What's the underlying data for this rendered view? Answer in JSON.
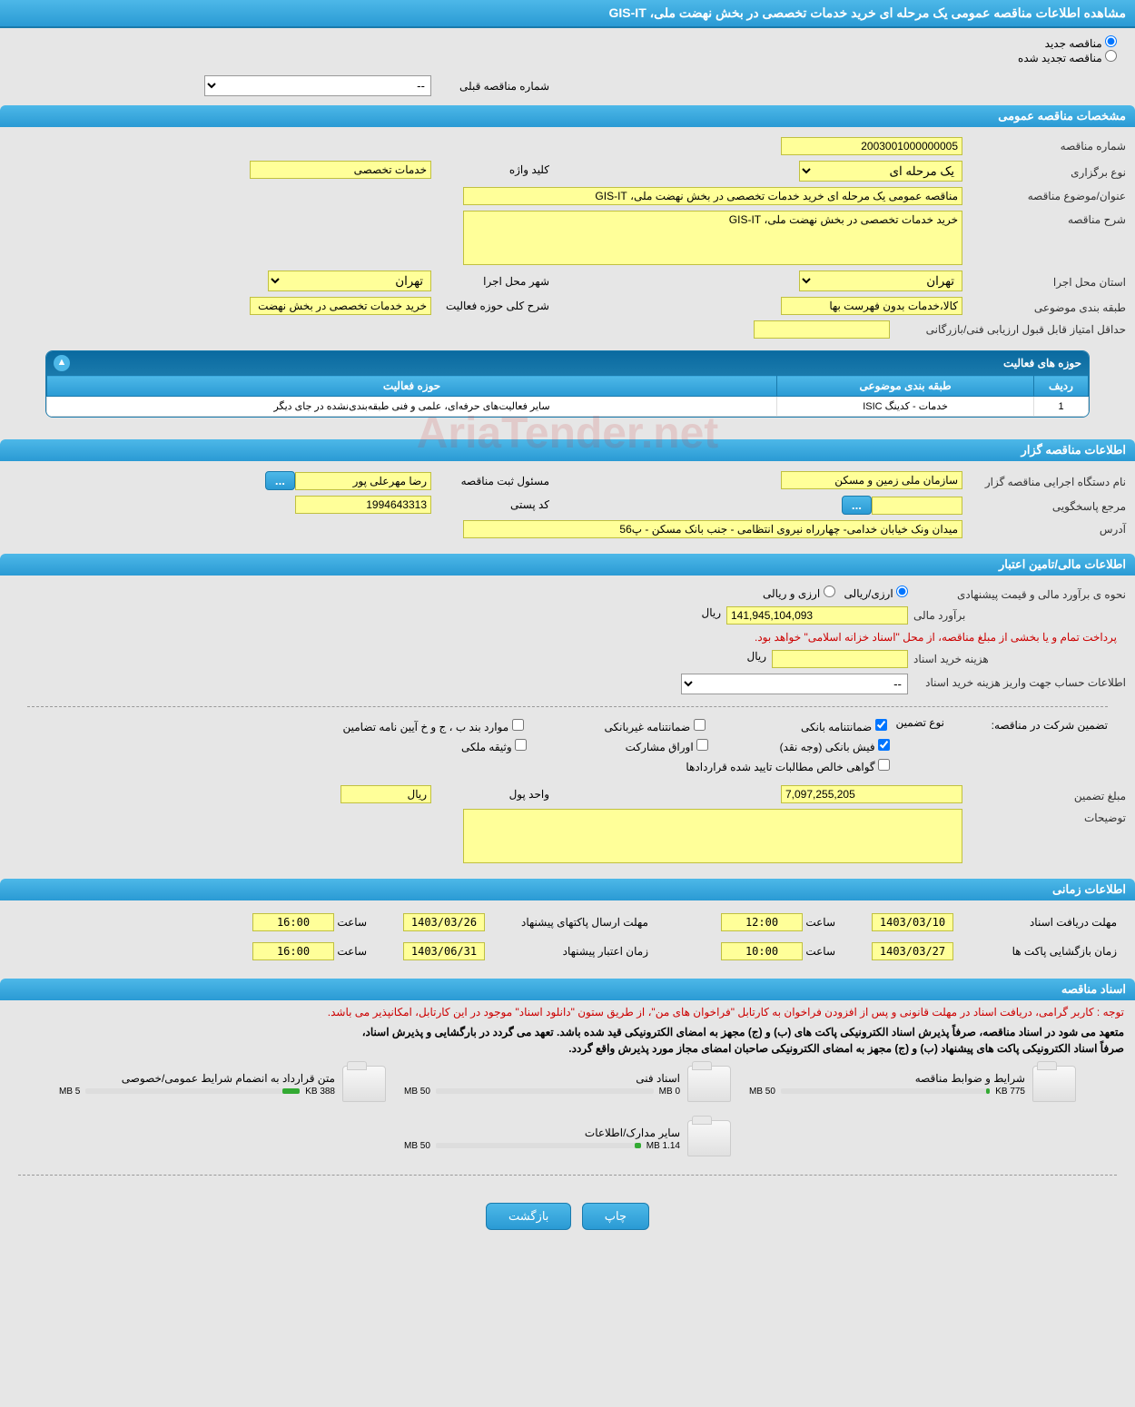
{
  "header": {
    "title": "مشاهده اطلاعات مناقصه عمومی یک مرحله ای خرید خدمات تخصصی در بخش نهضت ملی، GIS-IT"
  },
  "tender_type": {
    "new_label": "مناقصه جدید",
    "renewed_label": "مناقصه تجدید شده",
    "selected": "new"
  },
  "prev_number": {
    "label": "شماره مناقصه قبلی",
    "value": "--"
  },
  "sections": {
    "general": "مشخصات مناقصه عمومی",
    "organizer": "اطلاعات مناقصه گزار",
    "financial": "اطلاعات مالی/تامین اعتبار",
    "timing": "اطلاعات زمانی",
    "documents": "اسناد مناقصه"
  },
  "general": {
    "number_label": "شماره مناقصه",
    "number": "2003001000000005",
    "type_label": "نوع برگزاری",
    "type": "یک مرحله ای",
    "keyword_label": "کلید واژه",
    "keyword": "خدمات تخصصی",
    "title_label": "عنوان/موضوع مناقصه",
    "title": "مناقصه عمومی یک مرحله ای خرید خدمات تخصصی در بخش نهضت ملی، GIS-IT",
    "desc_label": "شرح مناقصه",
    "desc": "خرید خدمات تخصصی در بخش نهضت ملی، GIS-IT",
    "province_label": "استان محل اجرا",
    "province": "تهران",
    "city_label": "شهر محل اجرا",
    "city": "تهران",
    "category_label": "طبقه بندی موضوعی",
    "category": "کالا،خدمات بدون فهرست بها",
    "activity_scope_label": "شرح کلی حوزه فعالیت",
    "activity_scope": "خرید خدمات تخصصی در بخش نهضت ملی، GIS-IT",
    "min_score_label": "حداقل امتیاز قابل قبول ارزیابی فنی/بازرگانی",
    "min_score": ""
  },
  "activity": {
    "header": "حوزه های فعالیت",
    "col_row": "ردیف",
    "col_category": "طبقه بندی موضوعی",
    "col_scope": "حوزه فعالیت",
    "rows": [
      {
        "n": "1",
        "cat": "خدمات - کدینگ ISIC",
        "scope": "سایر فعالیت‌های حرفه‌ای، علمی و فنی طبقه‌بندی‌نشده در جای دیگر"
      }
    ]
  },
  "organizer": {
    "org_label": "نام دستگاه اجرایی مناقصه گزار",
    "org": "سازمان ملی زمین و مسکن",
    "registrar_label": "مسئول ثبت مناقصه",
    "registrar": "رضا مهرعلی پور",
    "contact_label": "مرجع پاسخگویی",
    "contact": "",
    "postal_label": "کد پستی",
    "postal": "1994643313",
    "address_label": "آدرس",
    "address": "میدان ونک خیابان خدامی- چهارراه نیروی انتظامی - جنب بانک مسکن - پ56"
  },
  "financial": {
    "method_label": "نحوه ی برآورد مالی و قیمت پیشنهادی",
    "method_opt1": "ارزی/ریالی",
    "method_opt2": "ارزی و ریالی",
    "estimate_label": "برآورد مالی",
    "estimate": "141,945,104,093",
    "currency": "ریال",
    "treasury_note": "پرداخت تمام و یا بخشی از مبلغ مناقصه، از محل \"اسناد خزانه اسلامی\" خواهد بود.",
    "doc_fee_label": "هزینه خرید اسناد",
    "doc_fee": "",
    "account_label": "اطلاعات حساب جهت واریز هزینه خرید اسناد",
    "account": "--",
    "guarantee_label": "تضمین شرکت در مناقصه:",
    "guarantee_type_label": "نوع تضمین",
    "cb_bank_guarantee": "ضمانتنامه بانکی",
    "cb_nonbank_guarantee": "ضمانتنامه غیربانکی",
    "cb_bylaw": "موارد بند ب ، ج و خ آیین نامه تضامین",
    "cb_bank_receipt": "فیش بانکی (وجه نقد)",
    "cb_securities": "اوراق مشارکت",
    "cb_property": "وثیقه ملکی",
    "cb_certificate": "گواهی خالص مطالبات تایید شده قراردادها",
    "guarantee_amount_label": "مبلغ تضمین",
    "guarantee_amount": "7,097,255,205",
    "unit_label": "واحد پول",
    "unit": "ریال",
    "notes_label": "توضیحات",
    "notes": ""
  },
  "timing": {
    "receive_label": "مهلت دریافت اسناد",
    "receive_date": "1403/03/10",
    "receive_time": "12:00",
    "send_label": "مهلت ارسال پاکتهای پیشنهاد",
    "send_date": "1403/03/26",
    "send_time": "16:00",
    "open_label": "زمان بازگشایی پاکت ها",
    "open_date": "1403/03/27",
    "open_time": "10:00",
    "validity_label": "زمان اعتبار پیشنهاد",
    "validity_date": "1403/06/31",
    "validity_time": "16:00",
    "time_label": "ساعت"
  },
  "documents": {
    "notice": "توجه : کاربر گرامی، دریافت اسناد در مهلت قانونی و پس از افزودن فراخوان به کارتابل \"فراخوان های من\"، از طریق ستون \"دانلود اسناد\" موجود در این کارتابل، امکانپذیر می باشد.",
    "bold1": "متعهد می شود در اسناد مناقصه، صرفاً پذیرش اسناد الکترونیکی پاکت های (ب) و (ج) مجهز به امضای الکترونیکی قید شده باشد. تعهد می گردد در بارگشایی و پذیرش اسناد،",
    "bold2": "صرفاً اسناد الکترونیکی پاکت های پیشنهاد (ب) و (ج) مجهز به امضای الکترونیکی صاحبان امضای مجاز مورد پذیرش واقع گردد.",
    "files": [
      {
        "name": "شرایط و ضوابط مناقصه",
        "used": "775 KB",
        "total": "50 MB",
        "pct": 2
      },
      {
        "name": "اسناد فنی",
        "used": "0 MB",
        "total": "50 MB",
        "pct": 0
      },
      {
        "name": "متن قرارداد به انضمام شرایط عمومی/خصوصی",
        "used": "388 KB",
        "total": "5 MB",
        "pct": 8
      },
      {
        "name": "سایر مدارک/اطلاعات",
        "used": "1.14 MB",
        "total": "50 MB",
        "pct": 3
      }
    ]
  },
  "buttons": {
    "print": "چاپ",
    "back": "بازگشت"
  },
  "watermark": "AriaTender.net"
}
